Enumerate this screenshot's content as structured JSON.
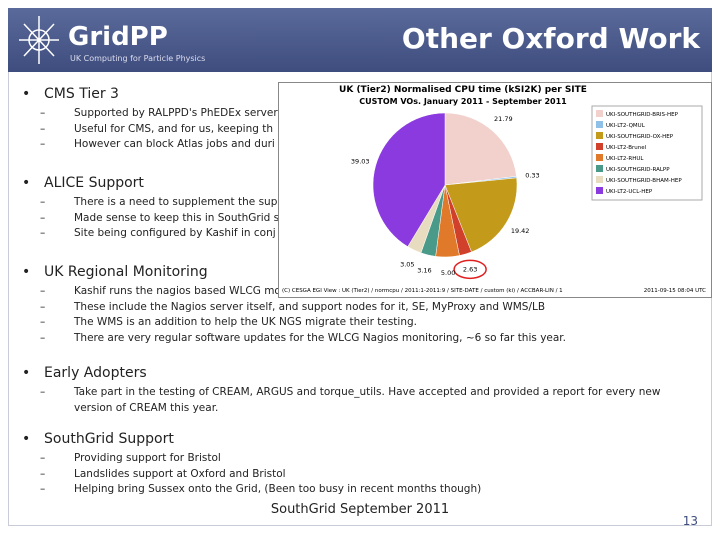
{
  "header": {
    "title": "Other Oxford Work",
    "logo": "GridPP",
    "logo_tagline": "UK Computing for Particle Physics"
  },
  "bullets": [
    {
      "text": "CMS Tier 3",
      "subs": [
        "Supported by RALPPD's PhEDEx server",
        "Useful for CMS, and for us, keeping th",
        "However can block Atlas jobs and duri"
      ]
    },
    {
      "text": "ALICE Support",
      "subs": [
        "There is a need to supplement the sup",
        "Made sense to keep this in SouthGrid s",
        "Site being configured by Kashif in conj"
      ]
    },
    {
      "text": "UK Regional Monitoring",
      "subs": [
        "Kashif runs the nagios based WLCG mo",
        "These include the Nagios server itself, and support nodes for it, SE, MyProxy and WMS/LB",
        "The WMS is an addition to help the UK NGS migrate their testing.",
        "There are very regular software updates for the WLCG Nagios monitoring, ~6 so far this year."
      ]
    },
    {
      "text": "Early Adopters",
      "subs": [
        "Take part in the testing of CREAM, ARGUS and torque_utils. Have accepted and provided a report for every new version of CREAM this year."
      ]
    },
    {
      "text": "SouthGrid Support",
      "subs": [
        "Providing support for Bristol",
        "Landslides support at Oxford and Bristol",
        "Helping bring Sussex onto the Grid, (Been too busy in recent months though)"
      ]
    }
  ],
  "footer": "SouthGrid September 2011",
  "page_number": "13",
  "chart_data": {
    "type": "pie",
    "title": "UK (Tier2) Normalised CPU time (kSI2K) per SITE",
    "subtitle": "CUSTOM VOs. January 2011 - September 2011",
    "categories": [
      "UKI-SOUTHGRID-BRIS-HEP",
      "UKI-LT2-QMUL",
      "UKI-SOUTHGRID-OX-HEP",
      "UKI-LT2-Brunel",
      "UKI-LT2-RHUL",
      "UKI-SOUTHGRID-RALPP",
      "UKI-SOUTHGRID-BHAM-HEP",
      "UKI-LT2-UCL-HEP"
    ],
    "values": [
      21.79,
      0.33,
      19.42,
      2.63,
      5.0,
      3.16,
      3.05,
      39.03
    ],
    "value_labels": [
      "21.79",
      "0.33",
      "19.42",
      "2.63",
      "5.00",
      "3.16",
      "3.05",
      "39.03"
    ],
    "colors": [
      "#f2d0cc",
      "#8ec0e8",
      "#c49a1a",
      "#d0402a",
      "#e07a2a",
      "#4a9a8a",
      "#e8dcc0",
      "#8a3adf"
    ],
    "source": "(C) CESGA  EGI View : UK (Tier2) / normcpu / 2011:1-2011:9 / SITE-DATE / custom (ki) / ACCBAR-LIN / 1",
    "timestamp": "2011-09-15 08:04 UTC"
  }
}
